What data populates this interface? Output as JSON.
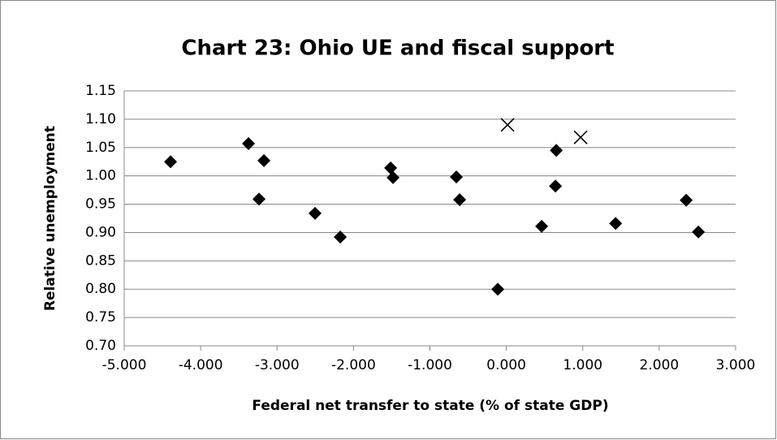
{
  "chart_data": {
    "type": "scatter",
    "title": "Chart 23: Ohio UE and fiscal support",
    "x_label": "Federal net transfer to state (% of state GDP)",
    "y_label": "Relative unemployment",
    "xlim": [
      -5,
      3
    ],
    "xticks": [
      {
        "value": -5,
        "label": "-5.000"
      },
      {
        "value": -4,
        "label": "-4.000"
      },
      {
        "value": -3,
        "label": "-3.000"
      },
      {
        "value": -2,
        "label": "-2.000"
      },
      {
        "value": -1,
        "label": "-1.000"
      },
      {
        "value": 0,
        "label": "0.000"
      },
      {
        "value": 1,
        "label": "1.000"
      },
      {
        "value": 2,
        "label": "2.000"
      },
      {
        "value": 3,
        "label": "3.000"
      }
    ],
    "ylim": [
      0.7,
      1.15
    ],
    "yticks": [
      {
        "value": 0.7,
        "label": "0.70"
      },
      {
        "value": 0.75,
        "label": "0.75"
      },
      {
        "value": 0.8,
        "label": "0.80"
      },
      {
        "value": 0.85,
        "label": "0.85"
      },
      {
        "value": 0.9,
        "label": "0.90"
      },
      {
        "value": 0.95,
        "label": "0.95"
      },
      {
        "value": 1.0,
        "label": "1.00"
      },
      {
        "value": 1.05,
        "label": "1.05"
      },
      {
        "value": 1.1,
        "label": "1.10"
      },
      {
        "value": 1.15,
        "label": "1.15"
      }
    ],
    "grid": true,
    "series": [
      {
        "marker": "diamond",
        "color": "#000000",
        "x": [
          -4.394,
          -3.374,
          -3.172,
          -3.236,
          -2.503,
          -2.173,
          -1.514,
          -1.482,
          -0.654,
          -0.611,
          -0.112,
          0.462,
          0.654,
          0.643,
          1.43,
          2.354,
          2.513
        ],
        "values": [
          1.025,
          1.057,
          1.027,
          0.959,
          0.934,
          0.892,
          1.014,
          0.997,
          0.998,
          0.958,
          0.8,
          0.911,
          1.045,
          0.982,
          0.916,
          0.957,
          0.901
        ]
      },
      {
        "marker": "cross",
        "color": "#000000",
        "x": [
          0.016,
          0.972
        ],
        "values": [
          1.09,
          1.068
        ]
      }
    ]
  }
}
